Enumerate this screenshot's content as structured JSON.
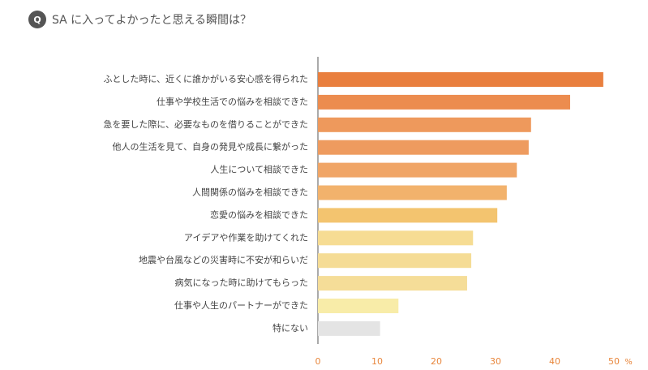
{
  "chart_data": {
    "type": "hbar",
    "badge": "Q",
    "title": "SA に入ってよかったと思える瞬間は？",
    "categories": [
      "ふとした時に、近くに誰かがいる安心感を得られた",
      "仕事や学校生活での悩みを相談できた",
      "急を要した際に、必要なものを借りることができた",
      "他人の生活を見て、自身の発見や成長に繋がった",
      "人生について相談できた",
      "人間関係の悩みを相談できた",
      "恋愛の悩みを相談できた",
      "アイデアや作業を助けてくれた",
      "地震や台風などの災害時に不安が和らいだ",
      "病気になった時に助けてもらった",
      "仕事や人生のパートナーができた",
      "特にない"
    ],
    "values": [
      48.2,
      42.6,
      36.0,
      35.6,
      33.6,
      31.9,
      30.3,
      26.2,
      25.9,
      25.2,
      13.6,
      10.5
    ],
    "colors": [
      "#e97f3e",
      "#ec8c4f",
      "#ee995c",
      "#ee9b5f",
      "#f0a566",
      "#f2b26c",
      "#f3c46f",
      "#f6dc93",
      "#f5dc95",
      "#f5dd98",
      "#f8eca8",
      "#e4e4e4"
    ],
    "xlim": [
      0,
      50
    ],
    "xticks": [
      0,
      10,
      20,
      30,
      40,
      50
    ],
    "x_unit": "%"
  }
}
